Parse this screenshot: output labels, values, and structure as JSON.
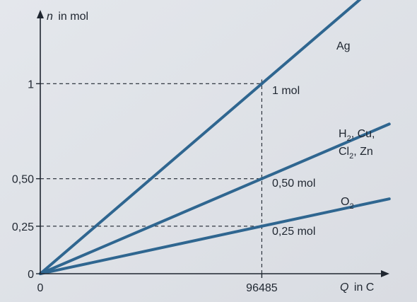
{
  "chart_data": {
    "type": "line",
    "ylabel_var": "n",
    "ylabel_unit": "in mol",
    "xlabel_var": "Q",
    "xlabel_unit": "in C",
    "x_ticks": [
      {
        "value": 0,
        "label": "0"
      },
      {
        "value": 96485,
        "label": "96485"
      }
    ],
    "y_ticks": [
      {
        "value": 0,
        "label": "0"
      },
      {
        "value": 0.25,
        "label": "0,25"
      },
      {
        "value": 0.5,
        "label": "0,50"
      },
      {
        "value": 1,
        "label": "1"
      }
    ],
    "xlim": [
      0,
      157000
    ],
    "ylim": [
      0,
      1.34
    ],
    "line_color": "#2f6690",
    "series": [
      {
        "x": [
          0,
          96485
        ],
        "y": [
          0,
          1
        ],
        "slope_per_mol_electron": 1
      },
      {
        "x": [
          0,
          96485
        ],
        "y": [
          0,
          0.5
        ],
        "slope_per_mol_electron": 0.5
      },
      {
        "x": [
          0,
          96485
        ],
        "y": [
          0,
          0.25
        ],
        "slope_per_mol_electron": 0.25
      }
    ],
    "series_labels": {
      "ag": "Ag",
      "h2_1": "H",
      "h2_sub": "2",
      "h2_2": ", Cu,",
      "cl2_1": "Cl",
      "cl2_sub": "2",
      "cl2_2": ", Zn",
      "o2_1": "O",
      "o2_sub": "2"
    },
    "annotations": {
      "one": "1 mol",
      "half": "0,50 mol",
      "quarter": "0,25 mol"
    }
  }
}
